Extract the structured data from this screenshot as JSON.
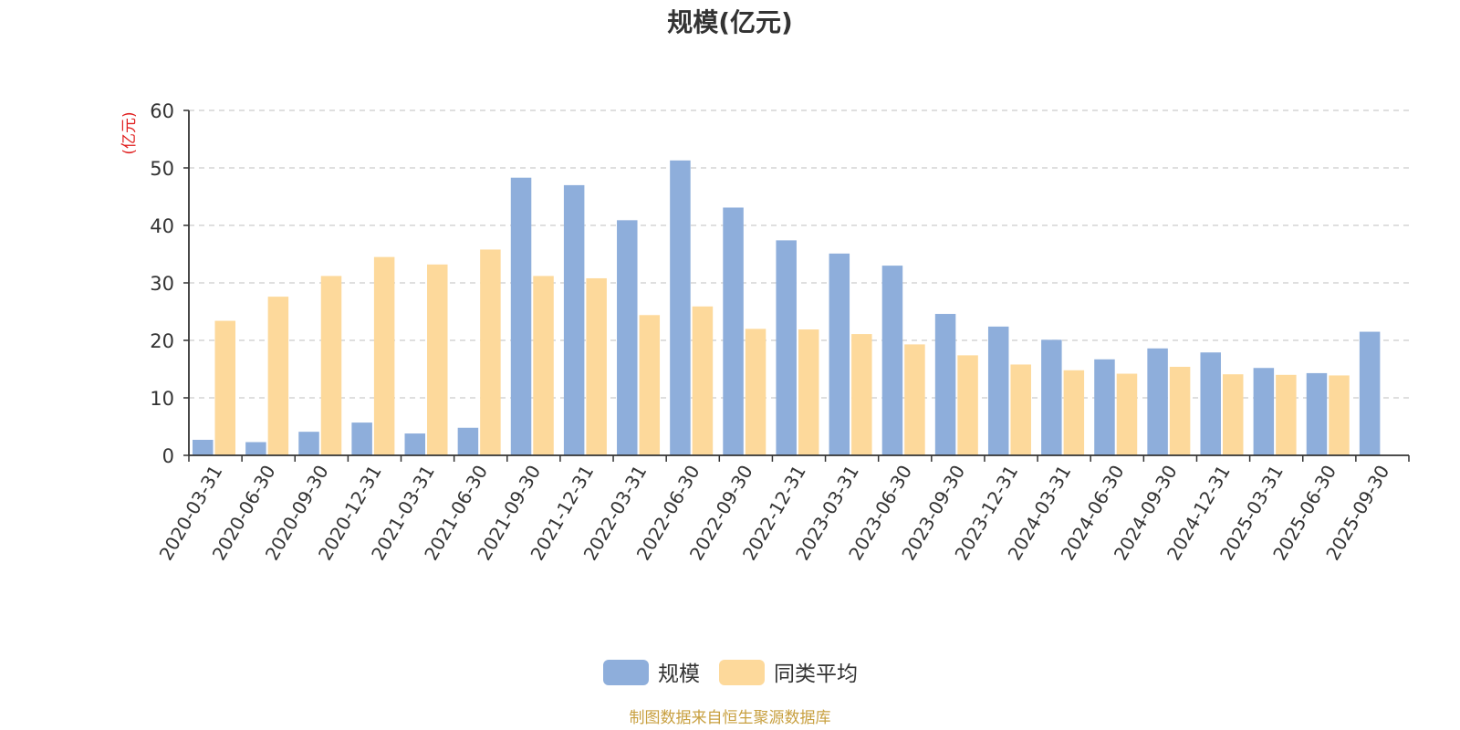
{
  "chart_data": {
    "type": "bar",
    "title": "规模(亿元)",
    "ylabel": "(亿元)",
    "xlabel": "",
    "ylim": [
      0,
      60
    ],
    "yticks": [
      0,
      10,
      20,
      30,
      40,
      50,
      60
    ],
    "grid": true,
    "legend_position": "bottom",
    "categories": [
      "2020-03-31",
      "2020-06-30",
      "2020-09-30",
      "2020-12-31",
      "2021-03-31",
      "2021-06-30",
      "2021-09-30",
      "2021-12-31",
      "2022-03-31",
      "2022-06-30",
      "2022-09-30",
      "2022-12-31",
      "2023-03-31",
      "2023-06-30",
      "2023-09-30",
      "2023-12-31",
      "2024-03-31",
      "2024-06-30",
      "2024-09-30",
      "2024-12-31",
      "2025-03-31",
      "2025-06-30",
      "2025-09-30"
    ],
    "series": [
      {
        "name": "规模",
        "color": "#8eaedb",
        "values": [
          2.7,
          2.3,
          4.1,
          5.7,
          3.8,
          4.8,
          48.3,
          47.0,
          40.9,
          51.3,
          43.1,
          37.4,
          35.1,
          33.0,
          24.6,
          22.4,
          20.1,
          16.7,
          18.6,
          17.9,
          15.2,
          14.3,
          21.5
        ]
      },
      {
        "name": "同类平均",
        "color": "#fdd99b",
        "values": [
          23.4,
          27.6,
          31.2,
          34.5,
          33.2,
          35.8,
          31.2,
          30.8,
          24.4,
          25.9,
          22.0,
          21.9,
          21.1,
          19.3,
          17.4,
          15.8,
          14.8,
          14.2,
          15.4,
          14.1,
          14.0,
          13.9,
          null
        ]
      }
    ]
  },
  "footer": {
    "source_note": "制图数据来自恒生聚源数据库"
  }
}
